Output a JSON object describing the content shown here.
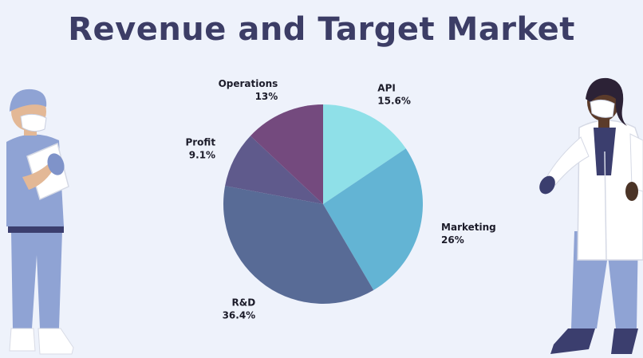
{
  "title": "Revenue and Target Market",
  "chart_data": {
    "type": "pie",
    "title": "Revenue and Target Market",
    "start_angle_deg": 0,
    "direction": "clockwise",
    "legend": "none",
    "slices": [
      {
        "label": "API",
        "value": 15.6,
        "value_label": "15.6%",
        "color": "#8fe0e8"
      },
      {
        "label": "Marketing",
        "value": 26,
        "value_label": "26%",
        "color": "#63b4d4"
      },
      {
        "label": "R&D",
        "value": 36.4,
        "value_label": "36.4%",
        "color": "#586b96"
      },
      {
        "label": "Profit",
        "value": 9.1,
        "value_label": "9.1%",
        "color": "#5f5a8c"
      },
      {
        "label": "Operations",
        "value": 13,
        "value_label": "13%",
        "color": "#744a7e"
      }
    ]
  },
  "illustrations": {
    "left": "doctor-with-clipboard-illustration",
    "right": "doctor-in-lab-coat-illustration"
  }
}
